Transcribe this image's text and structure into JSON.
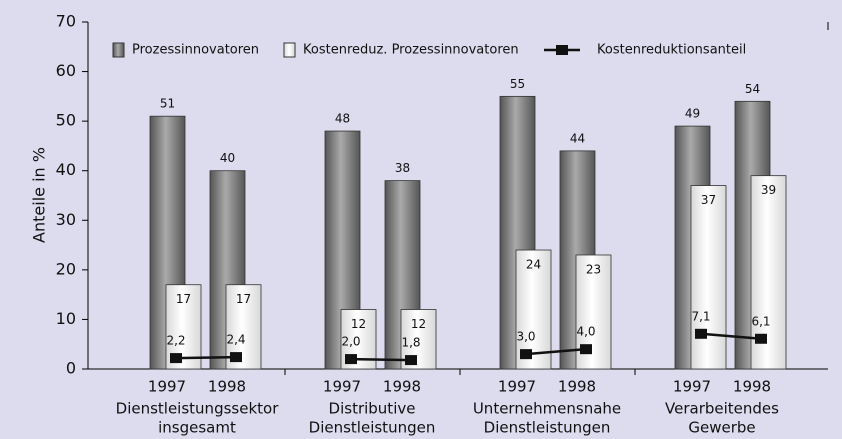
{
  "chart_data": {
    "type": "bar",
    "ylabel": "Anteile in %",
    "categories": [
      "1997",
      "1998",
      "1997",
      "1998",
      "1997",
      "1998",
      "1997",
      "1998"
    ],
    "group_labels": [
      [
        "Dienstleistungssektor",
        "insgesamt"
      ],
      [
        "Distributive",
        "Dienstleistungen"
      ],
      [
        "Unternehmensnahe",
        "Dienstleistungen"
      ],
      [
        "Verarbeitendes",
        "Gewerbe"
      ]
    ],
    "series": [
      {
        "name": "Prozessinnovatoren",
        "type": "bar",
        "color": "#555555",
        "values": [
          51,
          40,
          48,
          38,
          55,
          44,
          49,
          54
        ]
      },
      {
        "name": "Kostenreduz. Prozessinnovatoren",
        "type": "bar",
        "color": "#d8d8d8",
        "values": [
          17,
          17,
          12,
          12,
          24,
          23,
          37,
          39
        ]
      },
      {
        "name": "Kostenreduktionsanteil",
        "type": "line",
        "color": "#111111",
        "values": [
          2.2,
          2.4,
          2.0,
          1.8,
          3.0,
          4.0,
          7.1,
          6.1
        ],
        "value_labels": [
          "2,2",
          "2,4",
          "2,0",
          "1,8",
          "3,0",
          "4,0",
          "7,1",
          "6,1"
        ]
      }
    ],
    "ylim": [
      0,
      70
    ],
    "yticks": [
      0,
      10,
      20,
      30,
      40,
      50,
      60,
      70
    ],
    "grid": false
  }
}
